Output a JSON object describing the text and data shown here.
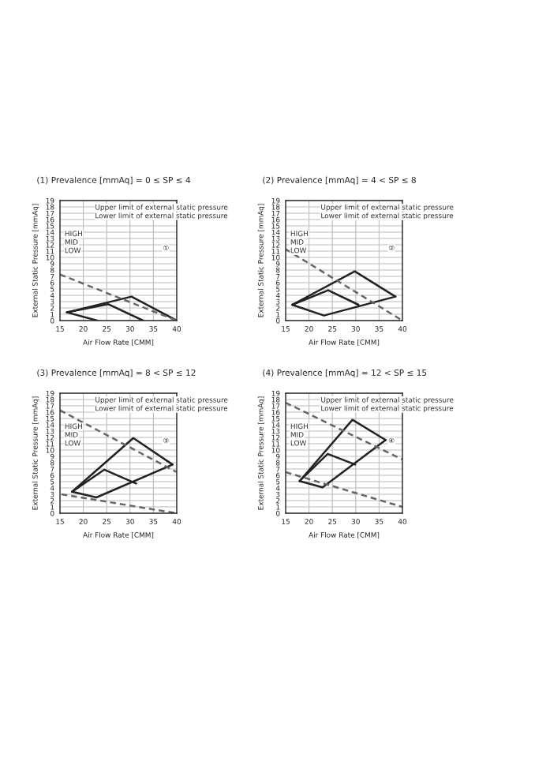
{
  "chart_data": [
    {
      "type": "line",
      "title": "(1) Prevalence [mmAq] = 0 ≤ SP ≤ 4",
      "xlabel": "Air Flow Rate [CMM]",
      "ylabel": "External Static Pressure [mmAq]",
      "xlim": [
        15,
        40
      ],
      "xticks": [
        15,
        20,
        25,
        30,
        35,
        40
      ],
      "ylim": [
        0,
        19
      ],
      "yticks": [
        0,
        1,
        2,
        3,
        4,
        5,
        6,
        7,
        8,
        9,
        10,
        11,
        12,
        13,
        14,
        15,
        16,
        17,
        18,
        19
      ],
      "grid": true,
      "series": [
        {
          "x": [
            16.5,
            30.3,
            40
          ],
          "values": [
            1.3,
            3.8,
            0
          ],
          "color": "#222222",
          "line_style": "solid"
        },
        {
          "x": [
            16.5,
            25.3,
            32.8
          ],
          "values": [
            1.3,
            2.6,
            0
          ],
          "color": "#222222",
          "line_style": "solid"
        },
        {
          "x": [
            16.5,
            23
          ],
          "values": [
            1.3,
            0
          ],
          "color": "#222222",
          "line_style": "solid"
        },
        {
          "x": [
            15,
            40
          ],
          "values": [
            7.3,
            0
          ],
          "color": "#666666",
          "line_style": "dashed"
        }
      ],
      "annotations": [
        "HIGH",
        "MID",
        "LOW",
        "Upper limit of external static pressure",
        "Lower limit of external static pressure",
        "①"
      ]
    },
    {
      "type": "line",
      "title": "(2) Prevalence [mmAq] = 4 < SP ≤ 8",
      "xlabel": "Air Flow Rate [CMM]",
      "ylabel": "External Static Pressure [mmAq]",
      "xlim": [
        15,
        40
      ],
      "xticks": [
        15,
        20,
        25,
        30,
        35,
        40
      ],
      "ylim": [
        0,
        19
      ],
      "yticks": [
        0,
        1,
        2,
        3,
        4,
        5,
        6,
        7,
        8,
        9,
        10,
        11,
        12,
        13,
        14,
        15,
        16,
        17,
        18,
        19
      ],
      "grid": true,
      "series": [
        {
          "x": [
            16.4,
            29.8,
            38.5
          ],
          "values": [
            2.5,
            7.8,
            3.8
          ],
          "color": "#222222",
          "line_style": "solid"
        },
        {
          "x": [
            16.4,
            24.1,
            30.6
          ],
          "values": [
            2.5,
            4.8,
            2.5
          ],
          "color": "#222222",
          "line_style": "solid"
        },
        {
          "x": [
            16.4,
            23.2,
            38.5
          ],
          "values": [
            2.5,
            0.8,
            3.8
          ],
          "color": "#222222",
          "line_style": "solid"
        },
        {
          "x": [
            15,
            40
          ],
          "values": [
            11.3,
            0
          ],
          "color": "#666666",
          "line_style": "dashed"
        }
      ],
      "annotations": [
        "HIGH",
        "MID",
        "LOW",
        "Upper limit of external static pressure",
        "Lower limit of external static pressure",
        "②"
      ]
    },
    {
      "type": "line",
      "title": "(3) Prevalence [mmAq] = 8 < SP ≤ 12",
      "xlabel": "Air Flow Rate [CMM]",
      "ylabel": "External Static Pressure [mmAq]",
      "xlim": [
        15,
        40
      ],
      "xticks": [
        15,
        20,
        25,
        30,
        35,
        40
      ],
      "ylim": [
        0,
        19
      ],
      "yticks": [
        0,
        1,
        2,
        3,
        4,
        5,
        6,
        7,
        8,
        9,
        10,
        11,
        12,
        13,
        14,
        15,
        16,
        17,
        18,
        19
      ],
      "grid": true,
      "series": [
        {
          "x": [
            17.6,
            30.7,
            39.1
          ],
          "values": [
            3.4,
            11.9,
            7.7
          ],
          "color": "#222222",
          "line_style": "solid"
        },
        {
          "x": [
            17.6,
            24.5,
            31.3
          ],
          "values": [
            3.4,
            6.9,
            4.7
          ],
          "color": "#222222",
          "line_style": "solid"
        },
        {
          "x": [
            17.6,
            22.8,
            39.1
          ],
          "values": [
            3.4,
            2.5,
            7.7
          ],
          "color": "#222222",
          "line_style": "solid"
        },
        {
          "x": [
            15,
            40
          ],
          "values": [
            16.3,
            6.5
          ],
          "color": "#666666",
          "line_style": "dashed"
        },
        {
          "x": [
            15.3,
            40
          ],
          "values": [
            3,
            0
          ],
          "color": "#666666",
          "line_style": "dashed"
        }
      ],
      "annotations": [
        "HIGH",
        "MID",
        "LOW",
        "Upper limit of external static pressure",
        "Lower limit of external static pressure",
        "③"
      ]
    },
    {
      "type": "line",
      "title": "(4) Prevalence [mmAq] = 12 < SP ≤ 15",
      "xlabel": "Air Flow Rate [CMM]",
      "ylabel": "External Static Pressure [mmAq]",
      "xlim": [
        15,
        40
      ],
      "xticks": [
        15,
        20,
        25,
        30,
        35,
        40
      ],
      "ylim": [
        0,
        19
      ],
      "yticks": [
        0,
        1,
        2,
        3,
        4,
        5,
        6,
        7,
        8,
        9,
        10,
        11,
        12,
        13,
        14,
        15,
        16,
        17,
        18,
        19
      ],
      "grid": true,
      "series": [
        {
          "x": [
            18,
            29.3,
            36.4
          ],
          "values": [
            5.1,
            14.8,
            11.6
          ],
          "color": "#222222",
          "line_style": "solid"
        },
        {
          "x": [
            18,
            24,
            29.9
          ],
          "values": [
            5.1,
            9.4,
            7.7
          ],
          "color": "#222222",
          "line_style": "solid"
        },
        {
          "x": [
            18,
            22.9,
            36.4
          ],
          "values": [
            5.1,
            4.1,
            11.6
          ],
          "color": "#222222",
          "line_style": "solid"
        },
        {
          "x": [
            15,
            40
          ],
          "values": [
            17.5,
            8.5
          ],
          "color": "#666666",
          "line_style": "dashed"
        },
        {
          "x": [
            15,
            40
          ],
          "values": [
            6.5,
            1
          ],
          "color": "#666666",
          "line_style": "dashed"
        }
      ],
      "annotations": [
        "HIGH",
        "MID",
        "LOW",
        "Upper limit of external static pressure",
        "Lower limit of external static pressure",
        "④"
      ]
    }
  ]
}
